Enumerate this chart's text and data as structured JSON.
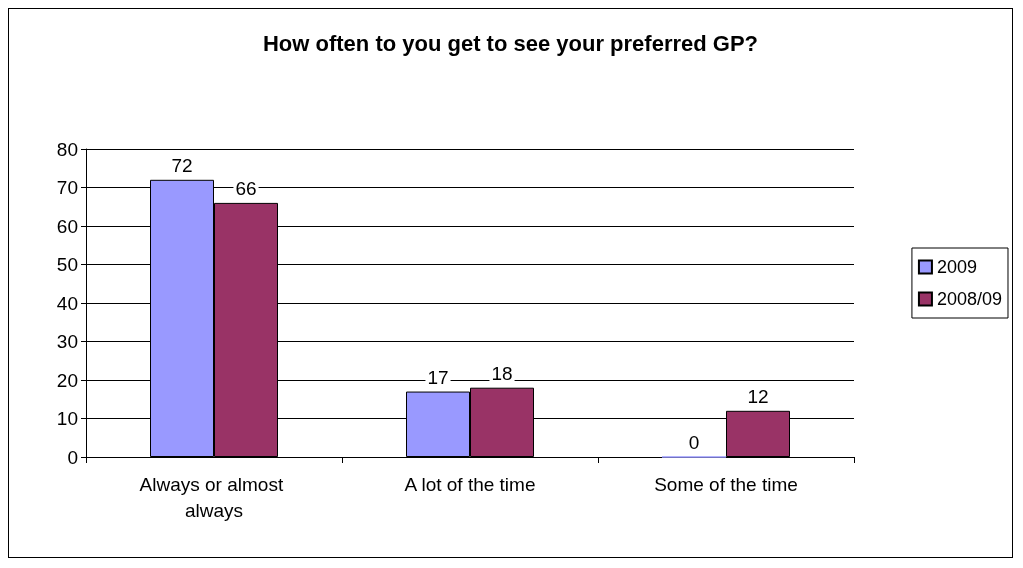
{
  "chart_data": {
    "type": "bar",
    "title": "How often to you get to see your preferred GP?",
    "categories": [
      "Always or almost always",
      "A lot of the time",
      "Some of the time"
    ],
    "series": [
      {
        "name": "2009",
        "color": "#9999ff",
        "values": [
          72,
          17,
          0
        ]
      },
      {
        "name": "2008/09",
        "color": "#993366",
        "values": [
          66,
          18,
          12
        ]
      }
    ],
    "ylim": [
      0,
      80
    ],
    "yticks": [
      0,
      10,
      20,
      30,
      40,
      50,
      60,
      70,
      80
    ],
    "grid": "y",
    "legend": "right",
    "data_labels": true
  }
}
